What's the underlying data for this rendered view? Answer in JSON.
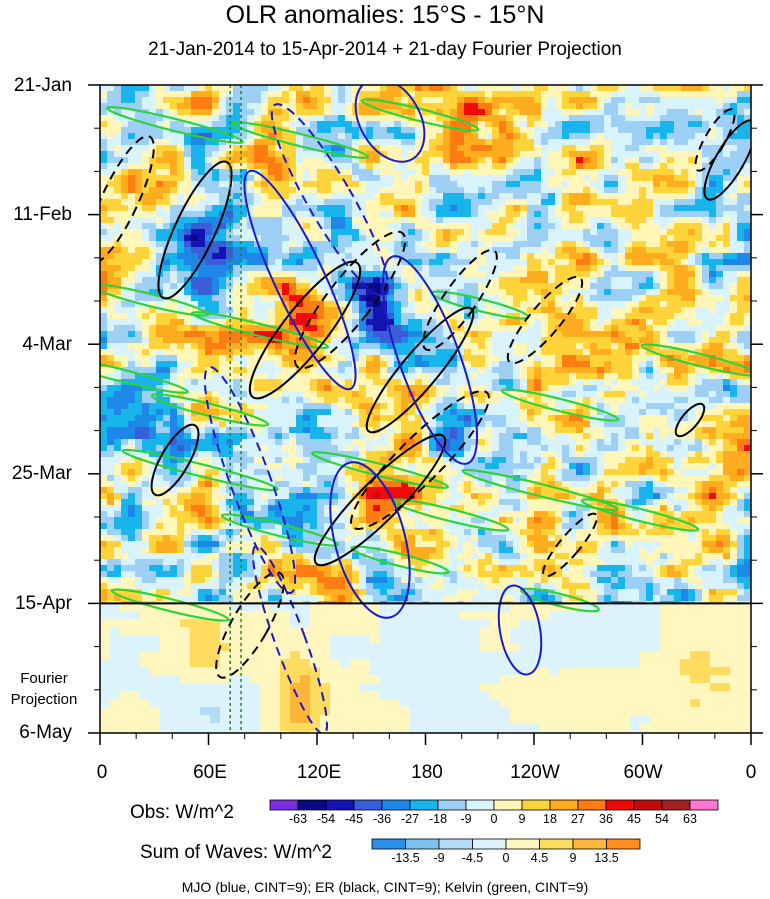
{
  "chart_data": {
    "type": "heatmap",
    "title": "OLR anomalies: 15°S - 15°N",
    "subtitle": "21-Jan-2014 to 15-Apr-2014 + 21-day Fourier Projection",
    "x_tick_labels": [
      "0",
      "60E",
      "120E",
      "180",
      "120W",
      "60W",
      "0"
    ],
    "x_tick_values_deg_east": [
      0,
      60,
      120,
      180,
      240,
      300,
      360
    ],
    "y_tick_labels": [
      "21-Jan",
      "11-Feb",
      "4-Mar",
      "25-Mar",
      "15-Apr",
      "6-May"
    ],
    "y_tick_dates": [
      "2014-01-21",
      "2014-02-11",
      "2014-03-04",
      "2014-03-25",
      "2014-04-15",
      "2014-05-06"
    ],
    "projection_start": "2014-04-15",
    "projection_label": "Fourier\nProjection",
    "reference_longitudes_deg_east": [
      72,
      78
    ],
    "obs_colorbar": {
      "label": "Obs: W/m^2",
      "levels": [
        -63,
        -54,
        -45,
        -36,
        -27,
        -18,
        -9,
        0,
        9,
        18,
        27,
        36,
        45,
        54,
        63
      ],
      "colors": [
        "#7b2ee0",
        "#0a0a80",
        "#1414b4",
        "#3a5ed8",
        "#1e88e8",
        "#18b4ec",
        "#9ed0f5",
        "#d8f3fb",
        "#fff6b8",
        "#ffd43a",
        "#ffac1e",
        "#ff7c12",
        "#f00a0a",
        "#c00c0c",
        "#a02424",
        "#ff78d0"
      ]
    },
    "waves_colorbar": {
      "label": "Sum of Waves: W/m^2",
      "levels": [
        -13.5,
        -9,
        -4.5,
        0,
        4.5,
        9,
        13.5
      ],
      "colors": [
        "#2b8ee8",
        "#7cc0f0",
        "#b4dcf7",
        "#dcf3fc",
        "#fff6c0",
        "#ffdc60",
        "#ffb43c",
        "#ff8e1e"
      ]
    },
    "footer": "MJO (blue, CINT=9); ER (black, CINT=9); Kelvin (green, CINT=9)",
    "contour_colors": {
      "mjo": "#1a1ac8",
      "er": "#000000",
      "kelvin": "#2ed23a",
      "reference_lines": "#1c8a1c"
    }
  }
}
